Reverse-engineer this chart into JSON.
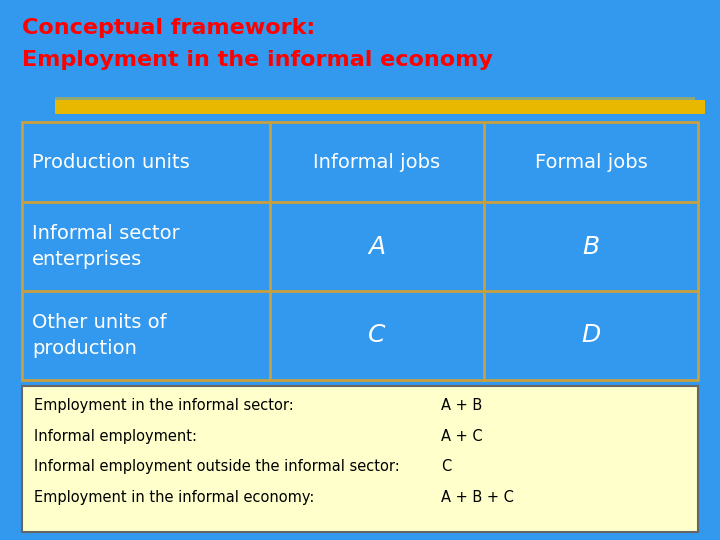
{
  "title_line1": "Conceptual framework:",
  "title_line2": "Employment in the informal economy",
  "title_color": "#FF0000",
  "background_color": "#3399EE",
  "table_bg_color": "#3399EE",
  "table_border_color": "#C8A040",
  "header_row": [
    "Production units",
    "Informal jobs",
    "Formal jobs"
  ],
  "data_rows": [
    [
      "Informal sector\nenterprises",
      "A",
      "B"
    ],
    [
      "Other units of\nproduction",
      "C",
      "D"
    ]
  ],
  "table_text_color": "#FFFFFF",
  "summary_bg_color": "#FFFFCC",
  "summary_border_color": "#666666",
  "summary_rows": [
    [
      "Employment in the informal sector:",
      "A + B"
    ],
    [
      "Informal employment:",
      "A + C"
    ],
    [
      "Informal employment outside the informal sector:",
      "C"
    ],
    [
      "Employment in the informal economy:",
      "A + B + C"
    ]
  ],
  "summary_text_color": "#000000",
  "stripe_color": "#E8B800",
  "title_fontsize": 16,
  "table_fontsize": 14,
  "cell_letter_fontsize": 18,
  "summary_fontsize": 10.5,
  "figsize": [
    7.2,
    5.4
  ],
  "dpi": 100
}
